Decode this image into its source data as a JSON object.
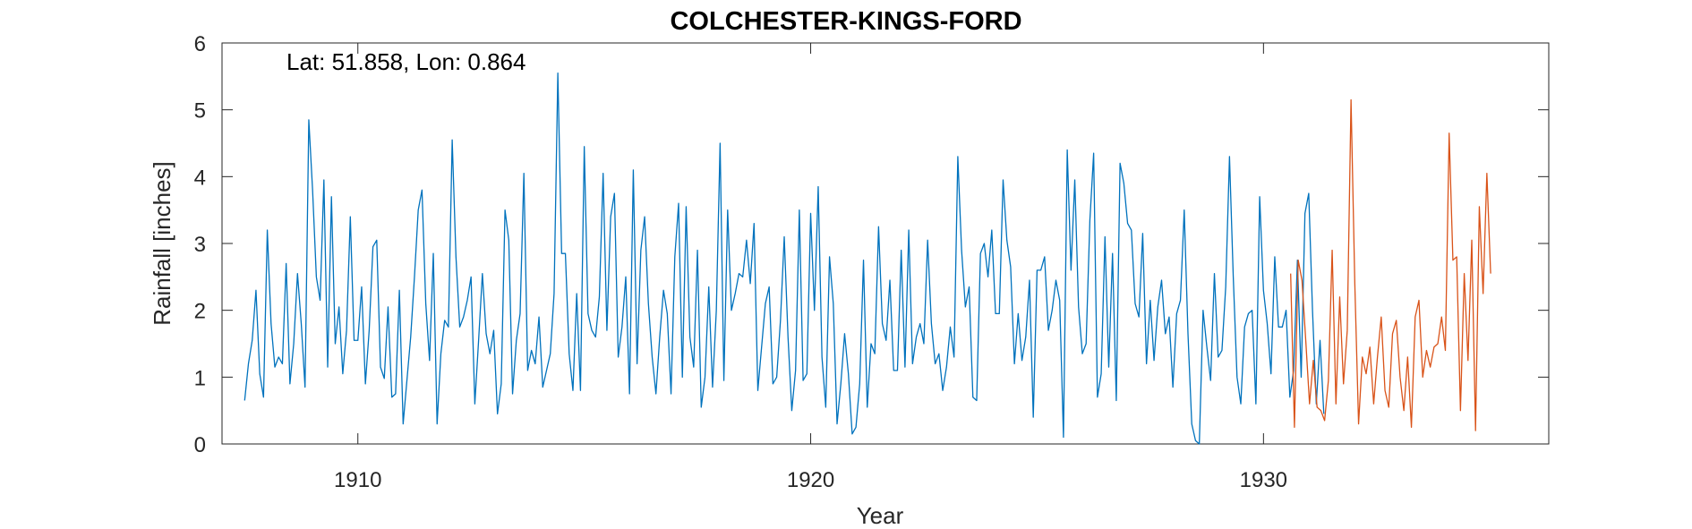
{
  "chart_data": {
    "type": "line",
    "title": "COLCHESTER-KINGS-FORD",
    "annotation": "Lat: 51.858, Lon: 0.864",
    "xlabel": "Year",
    "ylabel": "Rainfall [inches]",
    "xlim": [
      1907.0,
      1936.3
    ],
    "ylim": [
      0,
      6
    ],
    "xticks": [
      1910,
      1920,
      1930
    ],
    "xtick_labels": [
      "1910",
      "1920",
      "1930"
    ],
    "yticks": [
      0,
      1,
      2,
      3,
      4,
      5,
      6
    ],
    "ytick_labels": [
      "0",
      "1",
      "2",
      "3",
      "4",
      "5",
      "6"
    ],
    "grid": false,
    "box": true,
    "series": [
      {
        "color": "#0072BD",
        "x_start": 1907.5,
        "x_step": 0.08333,
        "values": [
          0.65,
          1.2,
          1.55,
          2.3,
          1.05,
          0.7,
          3.2,
          1.8,
          1.15,
          1.3,
          1.2,
          2.7,
          0.9,
          1.5,
          2.55,
          1.8,
          0.85,
          4.85,
          3.8,
          2.5,
          2.15,
          3.95,
          1.15,
          3.7,
          1.5,
          2.05,
          1.05,
          1.7,
          3.4,
          1.55,
          1.55,
          2.35,
          0.9,
          1.7,
          2.95,
          3.05,
          1.15,
          0.98,
          2.05,
          0.7,
          0.75,
          2.3,
          0.3,
          0.95,
          1.6,
          2.5,
          3.5,
          3.8,
          2.1,
          1.25,
          2.85,
          0.3,
          1.35,
          1.85,
          1.75,
          4.55,
          2.8,
          1.75,
          1.9,
          2.15,
          2.5,
          0.6,
          1.55,
          2.55,
          1.65,
          1.35,
          1.7,
          0.45,
          0.9,
          3.5,
          3.05,
          0.75,
          1.55,
          1.95,
          4.05,
          1.1,
          1.4,
          1.2,
          1.9,
          0.85,
          1.1,
          1.35,
          2.25,
          5.55,
          2.85,
          2.85,
          1.35,
          0.8,
          2.25,
          0.8,
          4.45,
          1.95,
          1.7,
          1.6,
          2.2,
          4.05,
          1.7,
          3.4,
          3.75,
          1.3,
          1.75,
          2.5,
          0.75,
          4.1,
          1.2,
          2.9,
          3.4,
          2.1,
          1.3,
          0.75,
          1.6,
          2.3,
          1.95,
          0.75,
          2.8,
          3.6,
          1.0,
          3.55,
          1.6,
          1.15,
          2.9,
          0.55,
          1.0,
          2.35,
          0.85,
          2.0,
          4.5,
          0.95,
          3.5,
          2.0,
          2.25,
          2.55,
          2.5,
          3.05,
          2.4,
          3.3,
          0.8,
          1.45,
          2.1,
          2.35,
          0.9,
          1.0,
          1.85,
          3.1,
          1.6,
          0.5,
          1.1,
          3.5,
          0.95,
          1.05,
          3.45,
          2.0,
          3.85,
          1.3,
          0.55,
          2.8,
          2.1,
          0.3,
          0.9,
          1.65,
          1.05,
          0.15,
          0.25,
          0.9,
          2.75,
          0.55,
          1.5,
          1.35,
          3.25,
          1.8,
          1.55,
          2.45,
          1.1,
          1.1,
          2.9,
          1.15,
          3.2,
          1.2,
          1.6,
          1.8,
          1.5,
          3.05,
          1.8,
          1.2,
          1.35,
          0.8,
          1.15,
          1.75,
          1.3,
          4.3,
          2.9,
          2.05,
          2.35,
          0.7,
          0.65,
          2.85,
          3.0,
          2.5,
          3.2,
          1.95,
          1.95,
          3.95,
          3.05,
          2.65,
          1.2,
          1.95,
          1.25,
          1.6,
          2.45,
          0.4,
          2.6,
          2.6,
          2.8,
          1.7,
          2.0,
          2.45,
          2.15,
          0.1,
          4.4,
          2.6,
          3.95,
          2.05,
          1.35,
          1.5,
          3.35,
          4.35,
          0.7,
          1.05,
          3.1,
          1.15,
          2.85,
          0.65,
          4.2,
          3.9,
          3.3,
          3.2,
          2.1,
          1.9,
          3.15,
          1.2,
          2.15,
          1.25,
          2.05,
          2.45,
          1.65,
          1.9,
          0.85,
          1.95,
          2.15,
          3.5,
          1.65,
          0.3,
          0.05,
          0.0,
          2.0,
          1.45,
          0.95,
          2.55,
          1.3,
          1.4,
          2.35,
          4.3,
          2.5,
          1.0,
          0.6,
          1.75,
          1.95,
          2.0,
          0.6,
          3.7,
          2.3,
          1.8,
          1.05,
          2.8,
          1.75,
          1.75,
          2.0,
          0.7,
          1.1,
          2.75,
          1.0,
          3.45,
          3.75,
          2.0,
          0.6,
          1.55,
          0.45
        ]
      },
      {
        "color": "#D95319",
        "x_start": 1930.6,
        "x_step": 0.08333,
        "values": [
          2.55,
          0.25,
          2.75,
          2.45,
          1.55,
          0.6,
          1.25,
          0.55,
          0.5,
          0.35,
          0.95,
          2.9,
          0.6,
          2.2,
          0.9,
          1.7,
          5.15,
          2.4,
          0.3,
          1.3,
          1.05,
          1.45,
          0.6,
          1.3,
          1.9,
          0.8,
          0.55,
          1.65,
          1.85,
          1.0,
          0.5,
          1.3,
          0.25,
          1.9,
          2.15,
          1.0,
          1.4,
          1.15,
          1.45,
          1.5,
          1.9,
          1.4,
          4.65,
          2.75,
          2.8,
          0.5,
          2.55,
          1.25,
          3.05,
          0.2,
          3.55,
          2.25,
          4.05,
          2.55
        ]
      }
    ]
  }
}
